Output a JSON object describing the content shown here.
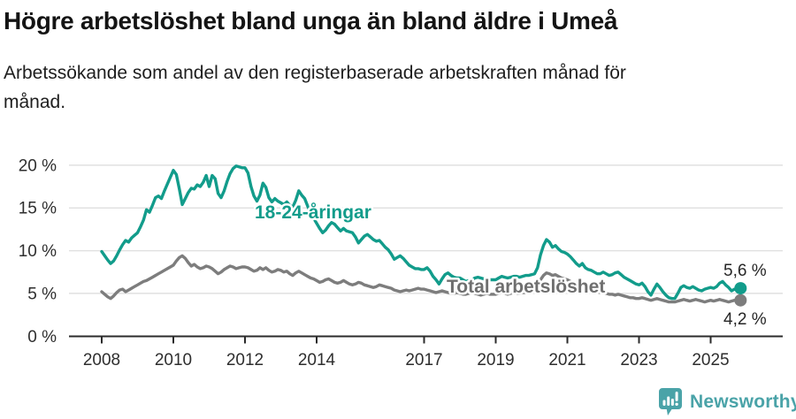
{
  "header": {
    "title": "Högre arbetslöshet bland unga än bland äldre i Umeå",
    "subtitle": "Arbetssökande som andel av den registerbaserade arbetskraften månad för månad.",
    "subtitle_line1": "Arbetssökande som andel av den registerbaserade arbetskraften månad för",
    "subtitle_line2": "månad."
  },
  "chart_data": {
    "type": "line",
    "title": "Högre arbetslöshet bland unga än bland äldre i Umeå",
    "xlabel": "",
    "ylabel": "Arbetssökande som andel av den registerbaserade arbetskraften",
    "x_start": "2008-01",
    "x_end": "2025-11",
    "frequency": "monthly",
    "grid": "horizontal",
    "legend_position": "inline-annotations",
    "ylim": [
      0,
      21
    ],
    "y_ticks": [
      {
        "value": 0,
        "label": "0 %"
      },
      {
        "value": 5,
        "label": "5 %"
      },
      {
        "value": 10,
        "label": "10 %"
      },
      {
        "value": 15,
        "label": "15 %"
      },
      {
        "value": 20,
        "label": "20 %"
      }
    ],
    "x_ticks": [
      {
        "year": 2008,
        "label": "2008"
      },
      {
        "year": 2010,
        "label": "2010"
      },
      {
        "year": 2012,
        "label": "2012"
      },
      {
        "year": 2014,
        "label": "2014"
      },
      {
        "year": 2017,
        "label": "2017"
      },
      {
        "year": 2019,
        "label": "2019"
      },
      {
        "year": 2021,
        "label": "2021"
      },
      {
        "year": 2023,
        "label": "2023"
      },
      {
        "year": 2025,
        "label": "2025"
      }
    ],
    "series": [
      {
        "id": "young",
        "name": "18-24-åringar",
        "color": "#129c8b",
        "end_label": "5,6 %",
        "end_value": 5.6,
        "values": [
          9.9,
          9.4,
          8.9,
          8.5,
          8.8,
          9.4,
          10.1,
          10.7,
          11.2,
          11.0,
          11.5,
          11.8,
          12.1,
          12.8,
          13.6,
          14.8,
          14.5,
          15.3,
          16.2,
          16.4,
          16.1,
          17.0,
          17.8,
          18.6,
          19.4,
          18.9,
          17.2,
          15.4,
          16.1,
          16.8,
          17.3,
          17.2,
          17.7,
          17.5,
          18.0,
          18.8,
          17.5,
          18.8,
          18.4,
          16.7,
          16.2,
          17.0,
          18.1,
          19.0,
          19.6,
          19.9,
          19.8,
          19.7,
          19.7,
          19.1,
          17.5,
          16.4,
          15.8,
          16.5,
          17.9,
          17.4,
          16.2,
          15.7,
          16.1,
          15.8,
          15.6,
          15.4,
          15.7,
          15.3,
          15.1,
          15.9,
          17.0,
          16.5,
          16.1,
          15.2,
          14.4,
          13.8,
          13.2,
          12.6,
          12.1,
          12.4,
          12.9,
          13.3,
          13.1,
          12.7,
          12.3,
          12.6,
          12.3,
          12.2,
          12.1,
          11.6,
          10.9,
          11.3,
          11.7,
          11.9,
          11.6,
          11.3,
          11.1,
          11.2,
          10.8,
          10.4,
          10.1,
          9.6,
          9.0,
          9.2,
          9.4,
          9.1,
          8.7,
          8.3,
          8.1,
          7.9,
          7.9,
          7.8,
          7.8,
          8.0,
          7.6,
          7.0,
          6.6,
          6.1,
          6.7,
          7.2,
          7.4,
          7.1,
          6.9,
          6.8,
          6.8,
          6.6,
          6.4,
          6.5,
          6.6,
          6.8,
          6.9,
          6.8,
          6.7,
          6.7,
          6.6,
          6.6,
          6.6,
          6.8,
          7.0,
          6.9,
          6.8,
          6.9,
          7.0,
          7.0,
          6.9,
          7.0,
          7.1,
          7.1,
          7.2,
          7.3,
          8.0,
          9.5,
          10.6,
          11.3,
          11.0,
          10.4,
          10.6,
          10.2,
          9.9,
          9.8,
          9.6,
          9.3,
          8.9,
          8.5,
          8.2,
          8.5,
          8.0,
          7.8,
          7.7,
          7.5,
          7.3,
          7.3,
          7.5,
          7.3,
          7.1,
          7.2,
          7.4,
          7.5,
          7.2,
          6.9,
          6.7,
          6.5,
          6.3,
          6.1,
          6.0,
          6.2,
          5.8,
          5.2,
          4.8,
          5.5,
          6.1,
          5.7,
          5.2,
          4.8,
          4.5,
          4.4,
          4.4,
          5.0,
          5.7,
          5.9,
          5.7,
          5.6,
          5.8,
          5.6,
          5.4,
          5.3,
          5.5,
          5.6,
          5.7,
          5.6,
          5.8,
          6.2,
          6.4,
          6.0,
          5.7,
          5.3,
          5.5,
          5.4,
          5.6
        ]
      },
      {
        "id": "total",
        "name": "Total arbetslöshet",
        "color": "#7d7d7d",
        "end_label": "4,2 %",
        "end_value": 4.2,
        "values": [
          5.2,
          4.9,
          4.6,
          4.4,
          4.7,
          5.1,
          5.4,
          5.5,
          5.2,
          5.4,
          5.6,
          5.8,
          6.0,
          6.2,
          6.4,
          6.5,
          6.7,
          6.9,
          7.1,
          7.3,
          7.5,
          7.7,
          7.9,
          8.1,
          8.3,
          8.8,
          9.2,
          9.4,
          9.1,
          8.6,
          8.2,
          8.4,
          8.1,
          7.9,
          8.0,
          8.2,
          8.1,
          7.9,
          7.6,
          7.3,
          7.5,
          7.8,
          8.0,
          8.2,
          8.1,
          7.9,
          8.0,
          8.1,
          8.1,
          8.0,
          7.8,
          7.6,
          7.7,
          8.0,
          7.8,
          8.0,
          7.7,
          7.5,
          7.6,
          7.8,
          7.7,
          7.5,
          7.6,
          7.3,
          7.1,
          7.4,
          7.6,
          7.4,
          7.2,
          7.0,
          6.8,
          6.7,
          6.5,
          6.3,
          6.4,
          6.6,
          6.7,
          6.5,
          6.3,
          6.2,
          6.3,
          6.5,
          6.3,
          6.1,
          6.0,
          6.1,
          6.3,
          6.2,
          6.0,
          5.9,
          5.8,
          5.7,
          5.8,
          6.0,
          5.9,
          5.8,
          5.7,
          5.6,
          5.4,
          5.3,
          5.2,
          5.3,
          5.4,
          5.3,
          5.4,
          5.5,
          5.6,
          5.5,
          5.5,
          5.4,
          5.3,
          5.2,
          5.1,
          5.2,
          5.3,
          5.2,
          5.1,
          5.0,
          5.0,
          5.1,
          5.0,
          4.9,
          4.9,
          5.0,
          5.1,
          5.0,
          4.9,
          4.8,
          4.9,
          5.0,
          4.9,
          4.9,
          4.9,
          5.0,
          5.1,
          5.0,
          4.9,
          5.0,
          5.1,
          5.0,
          5.0,
          5.1,
          5.1,
          5.2,
          5.3,
          5.4,
          5.9,
          6.6,
          7.1,
          7.4,
          7.3,
          7.1,
          7.2,
          7.0,
          6.8,
          6.7,
          6.6,
          6.4,
          6.2,
          6.0,
          5.9,
          5.8,
          5.6,
          5.5,
          5.4,
          5.3,
          5.2,
          5.1,
          5.1,
          5.0,
          4.9,
          4.9,
          4.8,
          4.9,
          4.8,
          4.7,
          4.6,
          4.5,
          4.5,
          4.4,
          4.4,
          4.5,
          4.4,
          4.3,
          4.2,
          4.3,
          4.4,
          4.3,
          4.2,
          4.1,
          4.0,
          4.0,
          4.0,
          4.1,
          4.2,
          4.3,
          4.2,
          4.1,
          4.2,
          4.3,
          4.2,
          4.1,
          4.0,
          4.1,
          4.2,
          4.1,
          4.2,
          4.3,
          4.2,
          4.1,
          4.0,
          4.1,
          4.2,
          4.1,
          4.2
        ]
      }
    ]
  },
  "annotations": {
    "young_series_label": "18-24-åringar",
    "total_series_label": "Total arbetslöshet",
    "young_end_value": "5,6 %",
    "total_end_value": "4,2 %"
  },
  "footer": {
    "brand": "Newsworthy",
    "logo_icon": "bar-chart-speech-bubble-icon"
  },
  "colors": {
    "young_line": "#129c8b",
    "total_line": "#7d7d7d",
    "brand_teal": "#4aa3a8",
    "gridline": "#e1e1e1",
    "axis": "#2b2b2b"
  }
}
